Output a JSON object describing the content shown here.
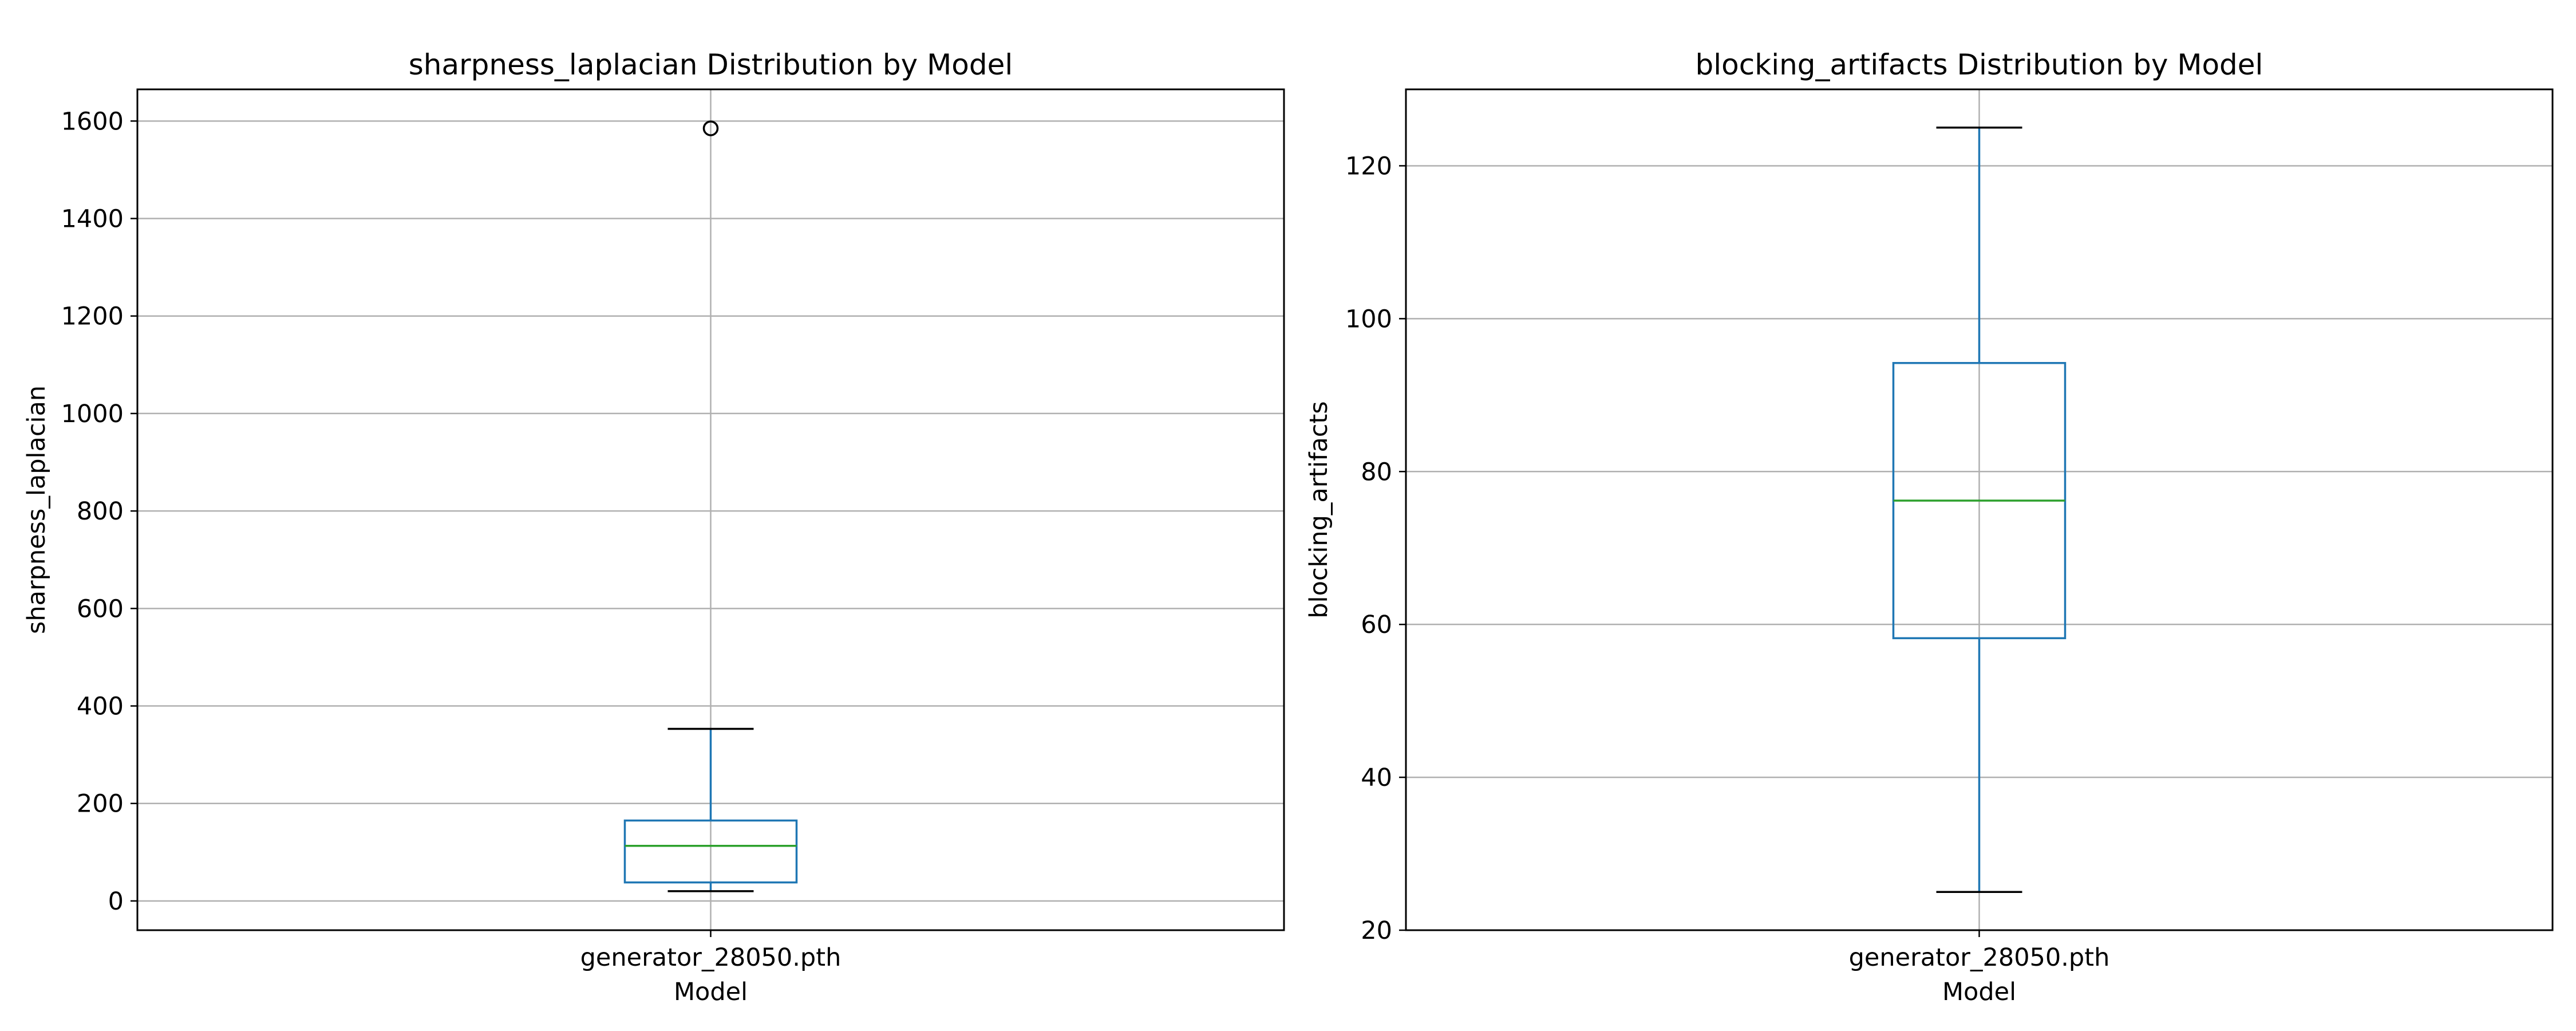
{
  "chart_data": [
    {
      "type": "box",
      "title": "sharpness_laplacian Distribution by Model",
      "xlabel": "Model",
      "ylabel": "sharpness_laplacian",
      "categories": [
        "generator_28050.pth"
      ],
      "ylim": [
        -60,
        1665
      ],
      "yticks": [
        0,
        200,
        400,
        600,
        800,
        1000,
        1200,
        1400,
        1600
      ],
      "grid": true,
      "boxes": [
        {
          "category": "generator_28050.pth",
          "whisker_low": 20,
          "q1": 38,
          "median": 113,
          "q3": 165,
          "whisker_high": 353,
          "outliers": [
            1585
          ]
        }
      ]
    },
    {
      "type": "box",
      "title": "blocking_artifacts Distribution by Model",
      "xlabel": "Model",
      "ylabel": "blocking_artifacts",
      "categories": [
        "generator_28050.pth"
      ],
      "ylim": [
        20,
        130
      ],
      "yticks": [
        20,
        40,
        60,
        80,
        100,
        120
      ],
      "grid": true,
      "boxes": [
        {
          "category": "generator_28050.pth",
          "whisker_low": 25,
          "q1": 58.2,
          "median": 76.2,
          "q3": 94.2,
          "whisker_high": 125,
          "outliers": []
        }
      ]
    }
  ],
  "colors": {
    "box": "#1f77b4",
    "median": "#2ca02c",
    "cap": "#000000",
    "grid": "#b0b0b0",
    "spine": "#000000"
  }
}
